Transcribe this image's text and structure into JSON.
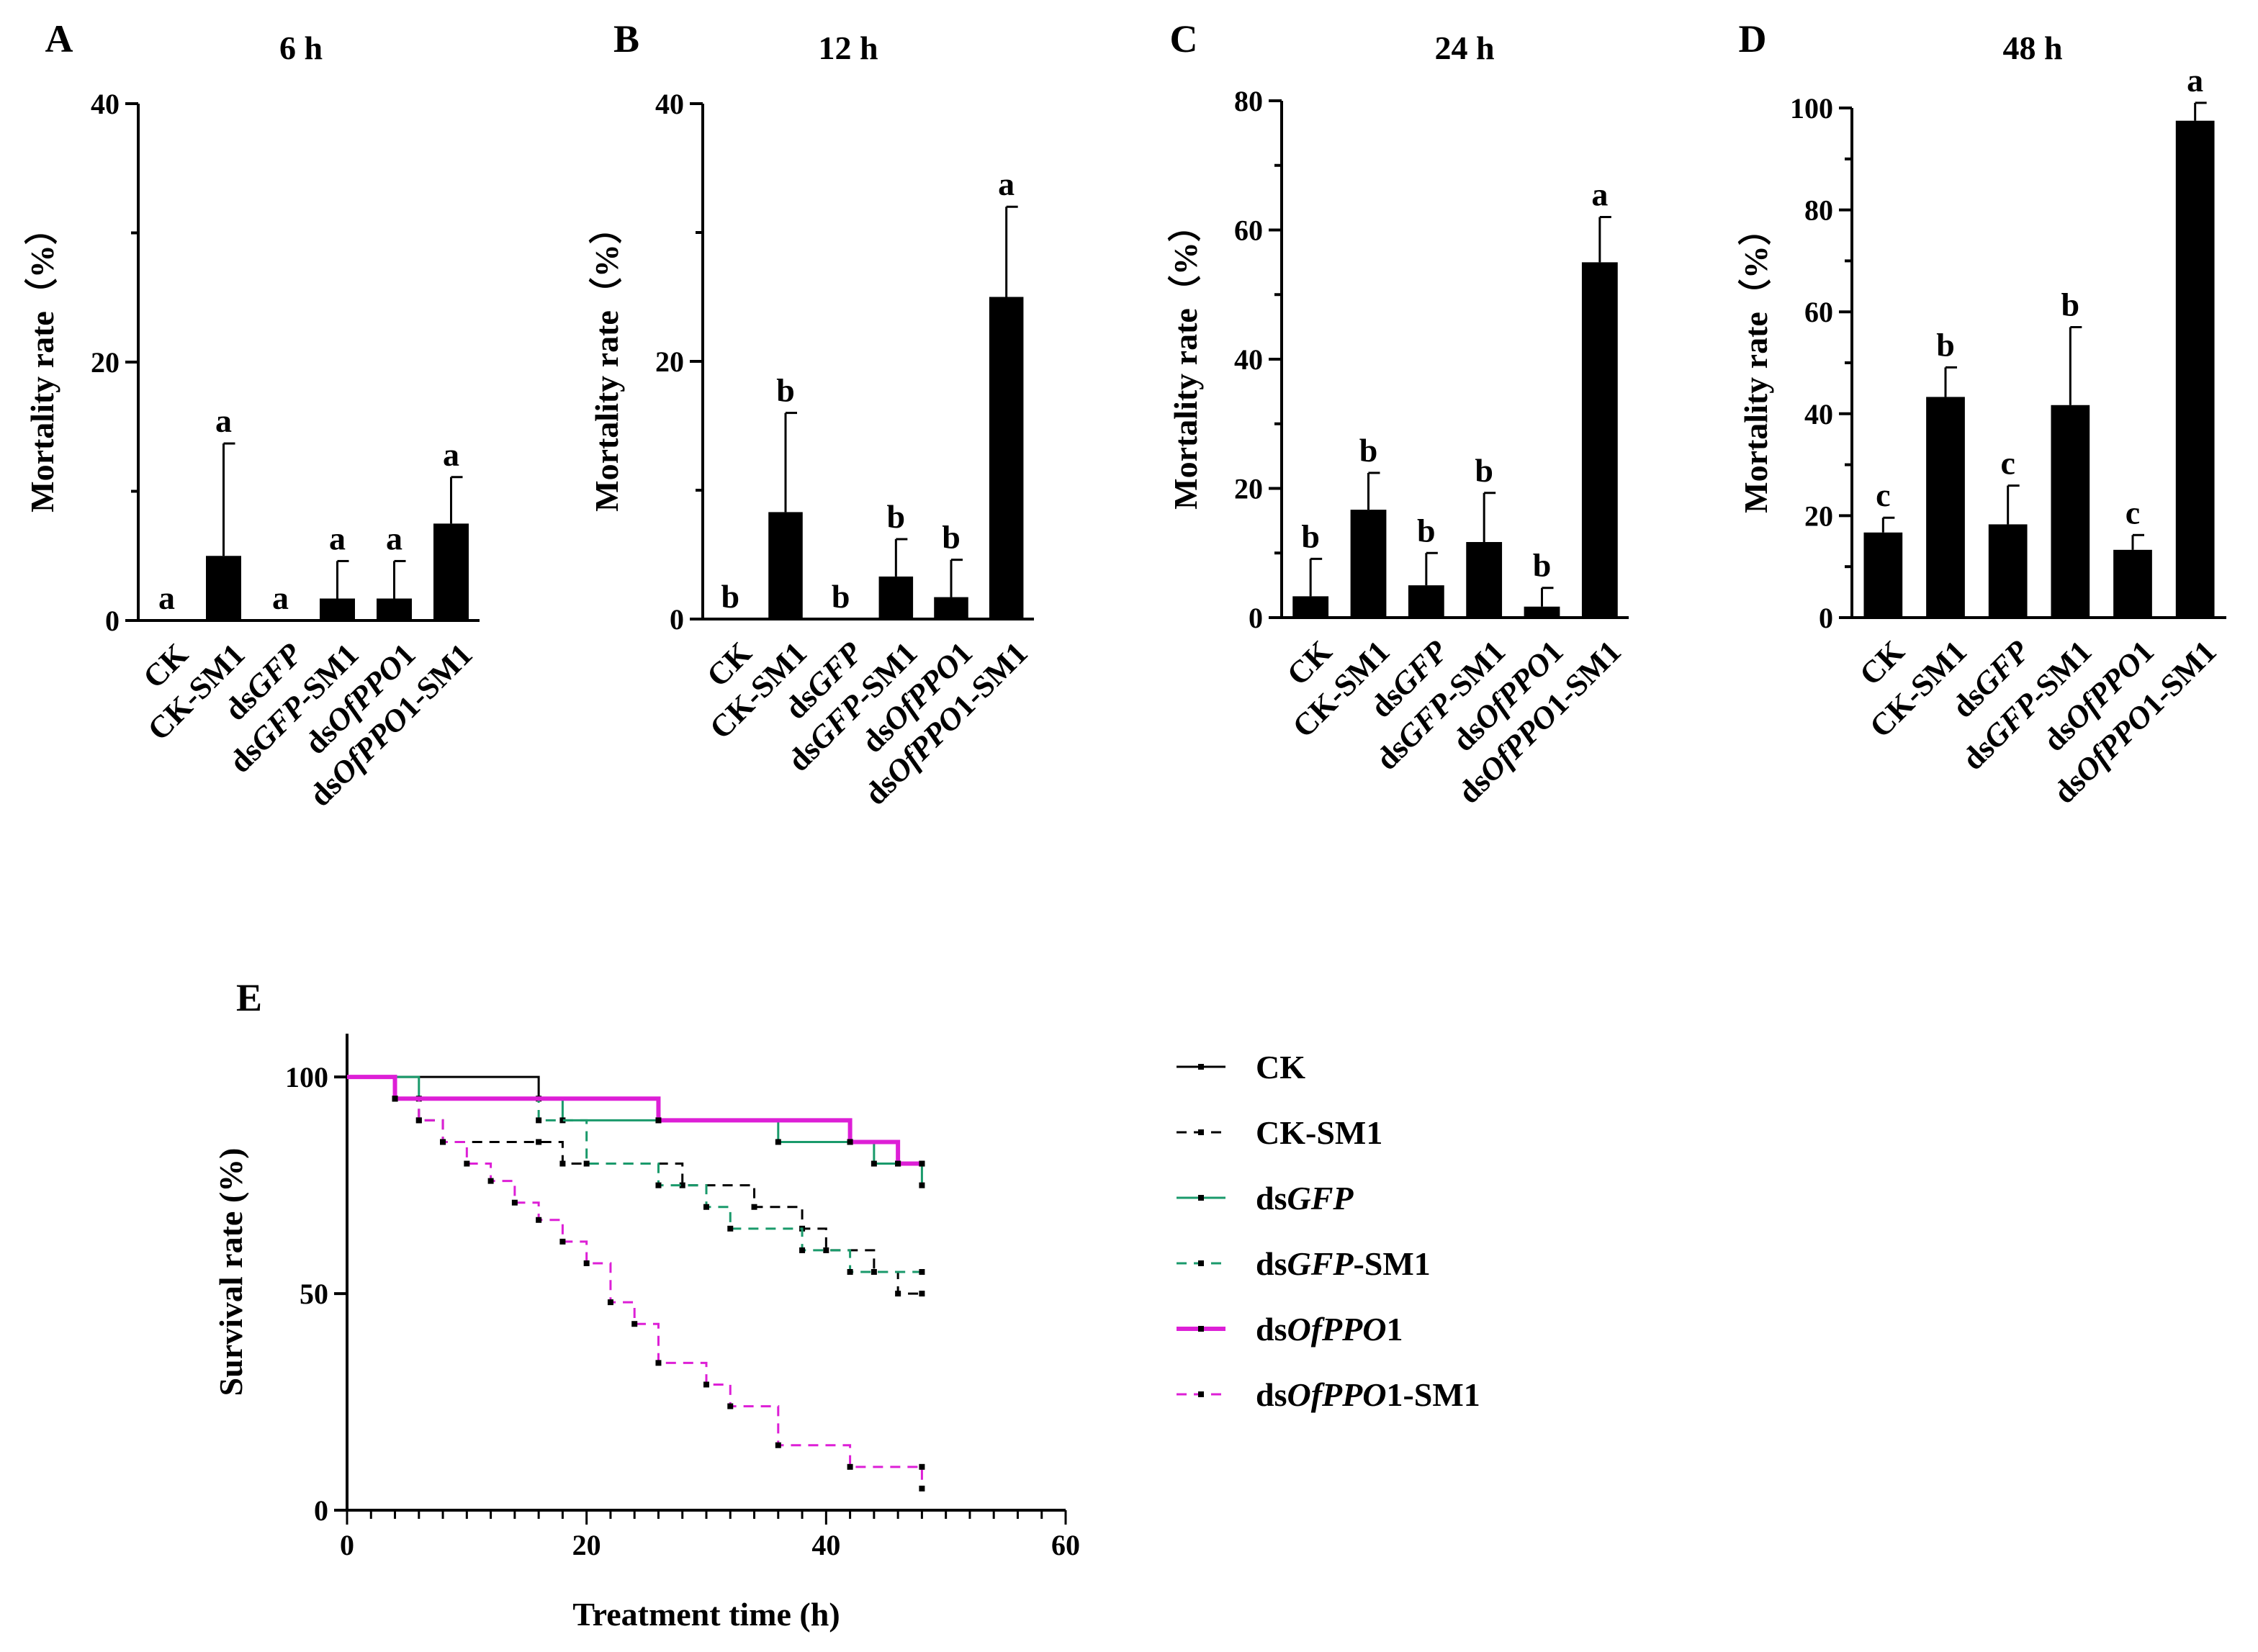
{
  "colors": {
    "black": "#000000",
    "green": "#1a9a6b",
    "magenta": "#dd1fd6"
  },
  "chart_data": [
    {
      "type": "bar",
      "panel": "A",
      "title": "6 h",
      "ylabel": "Mortality rate（%）",
      "ylim": [
        0,
        40
      ],
      "yticks": [
        0,
        20,
        40
      ],
      "categories": [
        [
          "CK"
        ],
        [
          "CK-SM1"
        ],
        [
          "ds",
          "GFP"
        ],
        [
          "ds",
          "GFP",
          "-SM1"
        ],
        [
          "ds",
          "OfPPO",
          "1"
        ],
        [
          "ds",
          "OfPPO",
          "1-SM1"
        ]
      ],
      "values": [
        0,
        5,
        0,
        1.7,
        1.7,
        7.5
      ],
      "errors": [
        0,
        8.7,
        0,
        2.9,
        2.9,
        3.6
      ],
      "letters": [
        "a",
        "a",
        "a",
        "a",
        "a",
        "a"
      ]
    },
    {
      "type": "bar",
      "panel": "B",
      "title": "12 h",
      "ylabel": "Mortality rate（%）",
      "ylim": [
        0,
        40
      ],
      "yticks": [
        0,
        20,
        40
      ],
      "categories": [
        [
          "CK"
        ],
        [
          "CK-SM1"
        ],
        [
          "ds",
          "GFP"
        ],
        [
          "ds",
          "GFP",
          "-SM1"
        ],
        [
          "ds",
          "OfPPO",
          "1"
        ],
        [
          "ds",
          "OfPPO",
          "1-SM1"
        ]
      ],
      "values": [
        0,
        8.3,
        0,
        3.3,
        1.7,
        25
      ],
      "errors": [
        0,
        7.7,
        0,
        2.9,
        2.9,
        7
      ],
      "letters": [
        "b",
        "b",
        "b",
        "b",
        "b",
        "a"
      ]
    },
    {
      "type": "bar",
      "panel": "C",
      "title": "24 h",
      "ylabel": "Mortality rate（%）",
      "ylim": [
        0,
        80
      ],
      "yticks": [
        0,
        20,
        40,
        60,
        80
      ],
      "categories": [
        [
          "CK"
        ],
        [
          "CK-SM1"
        ],
        [
          "ds",
          "GFP"
        ],
        [
          "ds",
          "GFP",
          "-SM1"
        ],
        [
          "ds",
          "OfPPO",
          "1"
        ],
        [
          "ds",
          "OfPPO",
          "1-SM1"
        ]
      ],
      "values": [
        3.3,
        16.7,
        5,
        11.7,
        1.7,
        55
      ],
      "errors": [
        5.8,
        5.7,
        5,
        7.6,
        2.9,
        7
      ],
      "letters": [
        "b",
        "b",
        "b",
        "b",
        "b",
        "a"
      ]
    },
    {
      "type": "bar",
      "panel": "D",
      "title": "48 h",
      "ylabel": "Mortality rate（%）",
      "ylim": [
        0,
        100
      ],
      "yticks": [
        0,
        20,
        40,
        60,
        80,
        100
      ],
      "categories": [
        [
          "CK"
        ],
        [
          "CK-SM1"
        ],
        [
          "ds",
          "GFP"
        ],
        [
          "ds",
          "GFP",
          "-SM1"
        ],
        [
          "ds",
          "OfPPO",
          "1"
        ],
        [
          "ds",
          "OfPPO",
          "1-SM1"
        ]
      ],
      "values": [
        16.7,
        43.3,
        18.3,
        41.7,
        13.3,
        97.5
      ],
      "errors": [
        2.9,
        5.8,
        7.6,
        15.3,
        2.9,
        3.5
      ],
      "letters": [
        "c",
        "b",
        "c",
        "b",
        "c",
        "a"
      ]
    },
    {
      "type": "line",
      "panel": "E",
      "title": "",
      "xlabel": "Treatment time (h)",
      "ylabel": "Survival rate (%)",
      "xlim": [
        0,
        60
      ],
      "ylim": [
        0,
        110
      ],
      "xticks": [
        0,
        20,
        40,
        60
      ],
      "yticks": [
        0,
        50,
        100
      ],
      "series": [
        {
          "name": [
            "CK"
          ],
          "color": "black",
          "dash": false,
          "width": 3,
          "steps": [
            [
              0,
              100
            ],
            [
              16,
              95
            ],
            [
              26,
              90
            ],
            [
              42,
              85
            ],
            [
              46,
              80
            ],
            [
              48,
              80
            ]
          ]
        },
        {
          "name": [
            "CK-SM1"
          ],
          "color": "black",
          "dash": true,
          "width": 3,
          "steps": [
            [
              0,
              100
            ],
            [
              4,
              95
            ],
            [
              6,
              90
            ],
            [
              8,
              85
            ],
            [
              16,
              85
            ],
            [
              18,
              80
            ],
            [
              28,
              75
            ],
            [
              34,
              70
            ],
            [
              38,
              65
            ],
            [
              40,
              60
            ],
            [
              44,
              55
            ],
            [
              46,
              50
            ],
            [
              48,
              50
            ]
          ]
        },
        {
          "name": [
            "ds",
            "GFP"
          ],
          "color": "green",
          "dash": false,
          "width": 3,
          "steps": [
            [
              0,
              100
            ],
            [
              6,
              95
            ],
            [
              18,
              90
            ],
            [
              36,
              85
            ],
            [
              44,
              80
            ],
            [
              48,
              75
            ]
          ]
        },
        {
          "name": [
            "ds",
            "GFP",
            "-SM1"
          ],
          "color": "green",
          "dash": true,
          "width": 3,
          "steps": [
            [
              0,
              100
            ],
            [
              4,
              95
            ],
            [
              16,
              90
            ],
            [
              20,
              80
            ],
            [
              26,
              75
            ],
            [
              30,
              70
            ],
            [
              32,
              65
            ],
            [
              38,
              60
            ],
            [
              42,
              55
            ],
            [
              48,
              55
            ]
          ]
        },
        {
          "name": [
            "ds",
            "OfPPO",
            "1"
          ],
          "color": "magenta",
          "dash": false,
          "width": 6,
          "steps": [
            [
              0,
              100
            ],
            [
              4,
              95
            ],
            [
              26,
              90
            ],
            [
              42,
              85
            ],
            [
              46,
              80
            ],
            [
              48,
              80
            ]
          ]
        },
        {
          "name": [
            "ds",
            "OfPPO",
            "1-SM1"
          ],
          "color": "magenta",
          "dash": true,
          "width": 3,
          "steps": [
            [
              0,
              100
            ],
            [
              4,
              95
            ],
            [
              6,
              90
            ],
            [
              8,
              85
            ],
            [
              10,
              80
            ],
            [
              12,
              76
            ],
            [
              14,
              71
            ],
            [
              16,
              67
            ],
            [
              18,
              62
            ],
            [
              20,
              57
            ],
            [
              22,
              48
            ],
            [
              24,
              43
            ],
            [
              26,
              34
            ],
            [
              30,
              29
            ],
            [
              32,
              24
            ],
            [
              36,
              15
            ],
            [
              42,
              10
            ],
            [
              48,
              10
            ],
            [
              48,
              5
            ]
          ]
        }
      ]
    }
  ]
}
